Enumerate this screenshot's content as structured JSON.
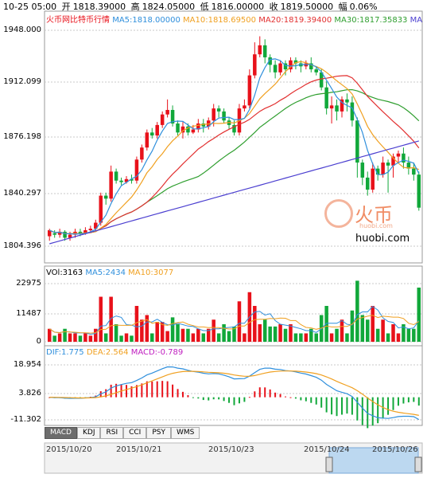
{
  "header": {
    "date": "10-25 05:00",
    "open_label": "开",
    "open": "1818.39000",
    "high_label": "高",
    "high": "1824.05000",
    "low_label": "低",
    "low": "1816.00000",
    "close_label": "收",
    "close": "1819.50000",
    "change_label": "幅",
    "change": "0.06%"
  },
  "main_legend": {
    "title": "火币网比特币行情",
    "ma5": "MA5:1818.00000",
    "ma10": "MA10:1818.69500",
    "ma20": "MA20:1819.39400",
    "ma30": "MA30:1817.35833",
    "more": "MA"
  },
  "watermark": {
    "brand": "火币",
    "domain_small": "huobi.com",
    "domain": "huobi.com"
  },
  "volume_legend": {
    "vol": "VOl:3163",
    "ma5": "MA5:2434",
    "ma10": "MA10:3077"
  },
  "macd_legend": {
    "dif": "DIF:1.775",
    "dea": "DEA:2.564",
    "macd": "MACD:-0.789"
  },
  "tabs": [
    "MACD",
    "KDJ",
    "RSI",
    "CCI",
    "PSY",
    "WMS"
  ],
  "active_tab": "MACD",
  "colors": {
    "up": "#e8111a",
    "down": "#11a83a",
    "ma5": "#2f8fdc",
    "ma10": "#f0a020",
    "ma20": "#e23030",
    "ma30": "#2e9e2e",
    "ma60": "#4b3fd0",
    "grid": "#c8c8c8"
  },
  "chart_data": [
    {
      "type": "candlestick",
      "title": "火币网比特币行情",
      "yticks": [
        "1948.000",
        "1912.099",
        "1876.198",
        "1840.297",
        "1804.396"
      ],
      "ylim": [
        1804.396,
        1948.0
      ],
      "x_labels": [
        "2015/10/20",
        "2015/10/21",
        "2015/10/23",
        "2015/10/24",
        "2015/10/26"
      ],
      "candles": [
        [
          1811,
          1815,
          1808,
          1816
        ],
        [
          1813,
          1812,
          1810,
          1815
        ],
        [
          1812,
          1814,
          1810,
          1816
        ],
        [
          1814,
          1810,
          1808,
          1815
        ],
        [
          1810,
          1812,
          1808,
          1814
        ],
        [
          1812,
          1814,
          1810,
          1816
        ],
        [
          1814,
          1813,
          1811,
          1816
        ],
        [
          1813,
          1815,
          1812,
          1817
        ],
        [
          1815,
          1816,
          1813,
          1818
        ],
        [
          1816,
          1820,
          1814,
          1822
        ],
        [
          1820,
          1838,
          1818,
          1840
        ],
        [
          1838,
          1836,
          1832,
          1840
        ],
        [
          1836,
          1854,
          1834,
          1858
        ],
        [
          1854,
          1848,
          1846,
          1856
        ],
        [
          1848,
          1847,
          1845,
          1850
        ],
        [
          1847,
          1849,
          1846,
          1851
        ],
        [
          1849,
          1848,
          1846,
          1852
        ],
        [
          1848,
          1862,
          1846,
          1864
        ],
        [
          1862,
          1870,
          1860,
          1872
        ],
        [
          1870,
          1880,
          1868,
          1882
        ],
        [
          1880,
          1878,
          1876,
          1883
        ],
        [
          1878,
          1885,
          1876,
          1887
        ],
        [
          1885,
          1892,
          1883,
          1894
        ],
        [
          1892,
          1895,
          1890,
          1902
        ],
        [
          1895,
          1886,
          1884,
          1898
        ],
        [
          1886,
          1880,
          1878,
          1888
        ],
        [
          1880,
          1884,
          1876,
          1887
        ],
        [
          1884,
          1880,
          1878,
          1886
        ],
        [
          1880,
          1882,
          1879,
          1885
        ],
        [
          1882,
          1886,
          1880,
          1889
        ],
        [
          1886,
          1884,
          1880,
          1889
        ],
        [
          1884,
          1888,
          1882,
          1890
        ],
        [
          1888,
          1896,
          1884,
          1899
        ],
        [
          1896,
          1894,
          1890,
          1898
        ],
        [
          1894,
          1888,
          1886,
          1896
        ],
        [
          1888,
          1885,
          1882,
          1890
        ],
        [
          1885,
          1880,
          1878,
          1888
        ],
        [
          1880,
          1896,
          1878,
          1899
        ],
        [
          1896,
          1898,
          1894,
          1902
        ],
        [
          1898,
          1918,
          1896,
          1922
        ],
        [
          1918,
          1932,
          1916,
          1940
        ],
        [
          1932,
          1938,
          1930,
          1944
        ],
        [
          1938,
          1930,
          1926,
          1942
        ],
        [
          1930,
          1925,
          1920,
          1932
        ],
        [
          1925,
          1920,
          1916,
          1928
        ],
        [
          1920,
          1926,
          1918,
          1928
        ],
        [
          1926,
          1922,
          1918,
          1928
        ],
        [
          1922,
          1928,
          1920,
          1930
        ],
        [
          1928,
          1926,
          1922,
          1930
        ],
        [
          1926,
          1924,
          1920,
          1928
        ],
        [
          1924,
          1926,
          1922,
          1928
        ],
        [
          1926,
          1922,
          1920,
          1930
        ],
        [
          1922,
          1920,
          1918,
          1924
        ],
        [
          1920,
          1910,
          1908,
          1922
        ],
        [
          1910,
          1896,
          1892,
          1914
        ],
        [
          1896,
          1898,
          1886,
          1904
        ],
        [
          1898,
          1894,
          1888,
          1902
        ],
        [
          1894,
          1902,
          1890,
          1904
        ],
        [
          1902,
          1900,
          1894,
          1906
        ],
        [
          1900,
          1888,
          1884,
          1904
        ],
        [
          1888,
          1860,
          1850,
          1890
        ],
        [
          1860,
          1850,
          1845,
          1862
        ],
        [
          1850,
          1842,
          1838,
          1854
        ],
        [
          1842,
          1856,
          1840,
          1860
        ],
        [
          1856,
          1852,
          1848,
          1858
        ],
        [
          1852,
          1860,
          1850,
          1864
        ],
        [
          1860,
          1858,
          1840,
          1862
        ],
        [
          1858,
          1864,
          1850,
          1866
        ],
        [
          1864,
          1866,
          1860,
          1868
        ],
        [
          1866,
          1860,
          1856,
          1870
        ],
        [
          1860,
          1856,
          1852,
          1864
        ],
        [
          1856,
          1852,
          1848,
          1860
        ],
        [
          1852,
          1830,
          1828,
          1854
        ]
      ]
    },
    {
      "type": "bar",
      "title": "VOl",
      "yticks": [
        "22975",
        "11487",
        "0"
      ],
      "ylim": [
        0,
        26000
      ]
    },
    {
      "type": "bar",
      "title": "MACD",
      "yticks": [
        "18.954",
        "3.826",
        "-11.302"
      ],
      "ylim": [
        -14,
        24
      ]
    }
  ]
}
